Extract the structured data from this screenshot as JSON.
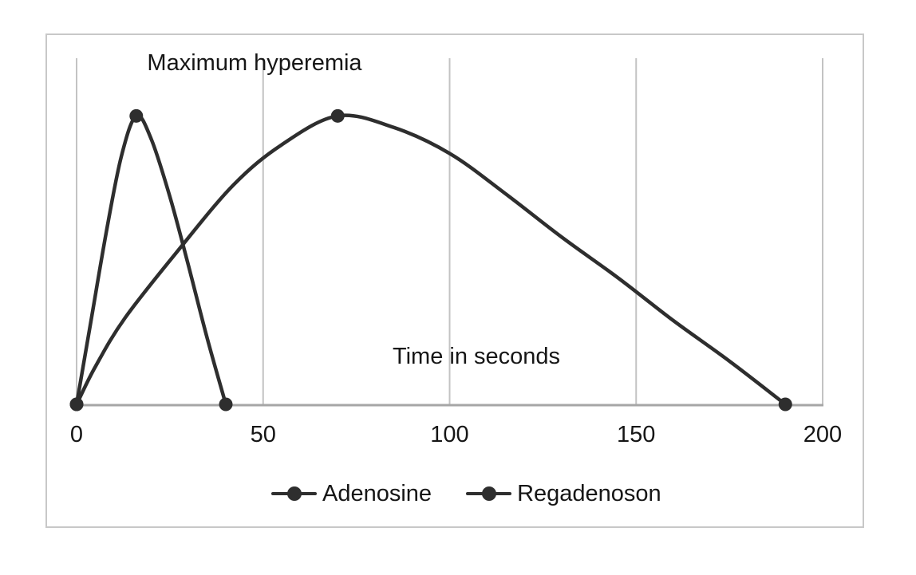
{
  "figure": {
    "annotation": "Maximum hyperemia",
    "x_axis_label": "Time in seconds"
  },
  "chart_data": {
    "type": "line",
    "title": "Maximum hyperemia",
    "xlabel": "Time in seconds",
    "ylabel": "",
    "xlim": [
      0,
      200
    ],
    "ylim": [
      0,
      120
    ],
    "x_ticks": [
      "0",
      "50",
      "100",
      "150",
      "200"
    ],
    "grid": "vertical-only",
    "legend_position": "bottom-center",
    "series": [
      {
        "name": "Adenosine",
        "color": "#2e2e2e",
        "points": [
          [
            0,
            0
          ],
          [
            4,
            30
          ],
          [
            8,
            60
          ],
          [
            12,
            86
          ],
          [
            16,
            100
          ],
          [
            20,
            92
          ],
          [
            25,
            72
          ],
          [
            30,
            48
          ],
          [
            35,
            23
          ],
          [
            40,
            0
          ]
        ],
        "marker_points": [
          [
            0,
            0
          ],
          [
            16,
            100
          ],
          [
            40,
            0
          ]
        ]
      },
      {
        "name": "Regadenoson",
        "color": "#2e2e2e",
        "points": [
          [
            0,
            0
          ],
          [
            5,
            13
          ],
          [
            13,
            30
          ],
          [
            27,
            53
          ],
          [
            42,
            76
          ],
          [
            55,
            90
          ],
          [
            70,
            100
          ],
          [
            85,
            96
          ],
          [
            100,
            87
          ],
          [
            115,
            73
          ],
          [
            130,
            58
          ],
          [
            145,
            44
          ],
          [
            160,
            29
          ],
          [
            175,
            15
          ],
          [
            190,
            0
          ]
        ],
        "marker_points": [
          [
            0,
            0
          ],
          [
            70,
            100
          ],
          [
            190,
            0
          ]
        ]
      }
    ]
  },
  "colors": {
    "curve": "#2e2e2e",
    "marker": "#2e2e2e",
    "gridline": "#c3c3c3",
    "axis_line": "#a6a6a6",
    "frame_border": "#c8c8c8",
    "text": "#161616",
    "background": "#ffffff"
  }
}
